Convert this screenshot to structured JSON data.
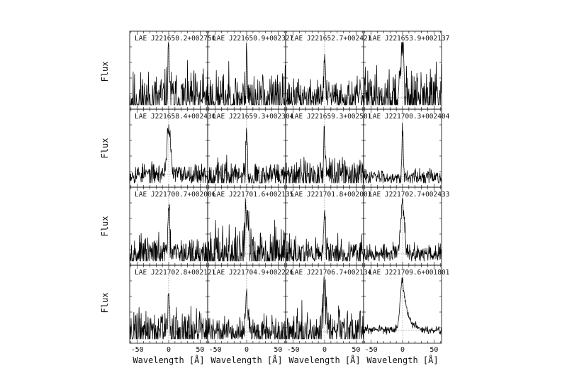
{
  "figure": {
    "ylabel": "Flux",
    "xlabel": "Wavelength [Å]",
    "rows": 4,
    "cols": 4
  },
  "chart_data": {
    "type": "line",
    "layout": "4x4 grid of spectra panels",
    "xlabel": "Wavelength [Å]",
    "ylabel": "Flux",
    "xlim": [
      -62,
      62
    ],
    "xticks": [
      -50,
      0,
      50
    ],
    "grid": false,
    "reference_lines": "dotted vertical at x=0 and dotted horizontal baseline",
    "panels": [
      {
        "title": "LAE J221650.2+002750",
        "peak": 0.85,
        "width": 1.5,
        "noise": 0.35,
        "bg": 0.1,
        "seed": 11
      },
      {
        "title": "LAE J221650.9+002327",
        "peak": 0.95,
        "width": 1.0,
        "noise": 0.35,
        "bg": 0.1,
        "seed": 23
      },
      {
        "title": "LAE J221652.7+002423",
        "peak": 0.72,
        "width": 1.2,
        "noise": 0.22,
        "bg": 0.12,
        "seed": 37
      },
      {
        "title": "LAE J221653.9+002137",
        "peak": 0.95,
        "width": 2.5,
        "noise": 0.38,
        "bg": 0.12,
        "seed": 41
      },
      {
        "title": "LAE J221658.4+002430",
        "peak": 0.8,
        "width": 2.8,
        "noise": 0.13,
        "bg": 0.15,
        "seed": 53
      },
      {
        "title": "LAE J221659.3+002304",
        "peak": 0.85,
        "width": 1.2,
        "noise": 0.2,
        "bg": 0.12,
        "seed": 67
      },
      {
        "title": "LAE J221659.3+002501",
        "peak": 0.75,
        "width": 1.3,
        "noise": 0.22,
        "bg": 0.12,
        "seed": 71
      },
      {
        "title": "LAE J221700.3+002404",
        "peak": 0.88,
        "width": 1.0,
        "noise": 0.1,
        "bg": 0.1,
        "seed": 83
      },
      {
        "title": "LAE J221700.7+002006",
        "peak": 0.72,
        "width": 1.5,
        "noise": 0.2,
        "bg": 0.12,
        "seed": 97
      },
      {
        "title": "LAE J221701.6+002135",
        "peak": 0.65,
        "width": 3.0,
        "noise": 0.36,
        "bg": 0.12,
        "seed": 101
      },
      {
        "title": "LAE J221701.8+002003",
        "peak": 0.7,
        "width": 1.3,
        "noise": 0.22,
        "bg": 0.12,
        "seed": 113
      },
      {
        "title": "LAE J221702.7+002433",
        "peak": 0.85,
        "width": 3.2,
        "noise": 0.12,
        "bg": 0.12,
        "seed": 127
      },
      {
        "title": "LAE J221702.8+002121",
        "peak": 0.65,
        "width": 1.1,
        "noise": 0.3,
        "bg": 0.12,
        "seed": 131
      },
      {
        "title": "LAE J221704.9+002226",
        "peak": 0.7,
        "width": 1.6,
        "noise": 0.2,
        "bg": 0.12,
        "seed": 139
      },
      {
        "title": "LAE J221706.7+002134",
        "peak": 0.75,
        "width": 2.0,
        "noise": 0.28,
        "bg": 0.12,
        "seed": 149
      },
      {
        "title": "LAE J221709.6+001801",
        "peak": 0.85,
        "width": 3.5,
        "noise": 0.05,
        "bg": 0.15,
        "seed": 151,
        "asym": 8
      }
    ]
  }
}
